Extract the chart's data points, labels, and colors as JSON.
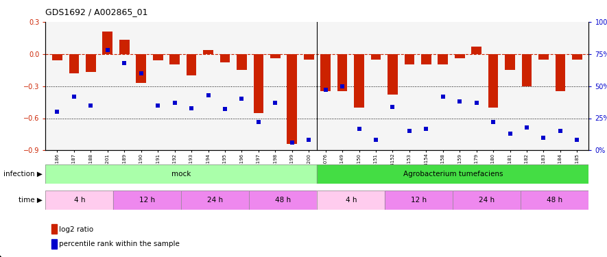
{
  "title": "GDS1692 / A002865_01",
  "samples": [
    "GSM94186",
    "GSM94187",
    "GSM94188",
    "GSM94201",
    "GSM94189",
    "GSM94190",
    "GSM94191",
    "GSM94192",
    "GSM94193",
    "GSM94194",
    "GSM94195",
    "GSM94196",
    "GSM94197",
    "GSM94198",
    "GSM94199",
    "GSM94200",
    "GSM94076",
    "GSM94149",
    "GSM94150",
    "GSM94151",
    "GSM94152",
    "GSM94153",
    "GSM94154",
    "GSM94158",
    "GSM94159",
    "GSM94179",
    "GSM94180",
    "GSM94181",
    "GSM94182",
    "GSM94183",
    "GSM94184",
    "GSM94185"
  ],
  "log2ratio": [
    -0.06,
    -0.18,
    -0.17,
    0.21,
    0.13,
    -0.27,
    -0.06,
    -0.1,
    -0.2,
    0.04,
    -0.08,
    -0.15,
    -0.55,
    -0.04,
    -0.84,
    -0.05,
    -0.35,
    -0.35,
    -0.5,
    -0.05,
    -0.38,
    -0.1,
    -0.1,
    -0.1,
    -0.04,
    0.07,
    -0.5,
    -0.15,
    -0.3,
    -0.05,
    -0.35,
    -0.05
  ],
  "percentile": [
    30,
    42,
    35,
    78,
    68,
    60,
    35,
    37,
    33,
    43,
    32,
    40,
    22,
    37,
    6,
    8,
    47,
    50,
    17,
    8,
    34,
    15,
    17,
    42,
    38,
    37,
    22,
    13,
    18,
    10,
    15,
    8
  ],
  "infection_groups": [
    {
      "label": "mock",
      "start": 0,
      "end": 15,
      "color": "#AAFFAA"
    },
    {
      "label": "Agrobacterium tumefaciens",
      "start": 16,
      "end": 31,
      "color": "#44DD44"
    }
  ],
  "time_groups": [
    {
      "label": "4 h",
      "start": 0,
      "end": 3,
      "color": "#FFCCEE"
    },
    {
      "label": "12 h",
      "start": 4,
      "end": 7,
      "color": "#EE88EE"
    },
    {
      "label": "24 h",
      "start": 8,
      "end": 11,
      "color": "#EE88EE"
    },
    {
      "label": "48 h",
      "start": 12,
      "end": 15,
      "color": "#EE88EE"
    },
    {
      "label": "4 h",
      "start": 16,
      "end": 19,
      "color": "#FFCCEE"
    },
    {
      "label": "12 h",
      "start": 20,
      "end": 23,
      "color": "#EE88EE"
    },
    {
      "label": "24 h",
      "start": 24,
      "end": 27,
      "color": "#EE88EE"
    },
    {
      "label": "48 h",
      "start": 28,
      "end": 31,
      "color": "#EE88EE"
    }
  ],
  "bar_color": "#CC2200",
  "dot_color": "#0000CC",
  "background_color": "#F5F5F5",
  "ylim_left": [
    -0.9,
    0.3
  ],
  "ylim_right": [
    0,
    100
  ],
  "yticks_left": [
    -0.9,
    -0.6,
    -0.3,
    0.0,
    0.3
  ],
  "yticks_right": [
    0,
    25,
    50,
    75,
    100
  ],
  "ytick_labels_right": [
    "0%",
    "25%",
    "50%",
    "75%",
    "100%"
  ],
  "separator_idx": 15.5,
  "n_mock": 16,
  "n_total": 32
}
